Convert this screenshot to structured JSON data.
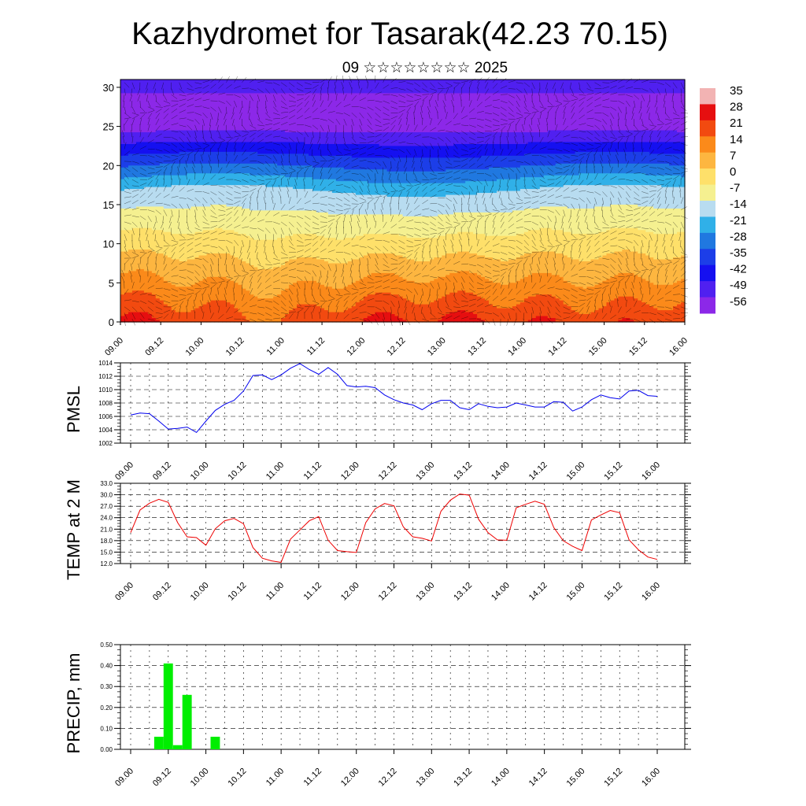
{
  "header": {
    "title": "Kazhydromet for Tasarak(42.23 70.15)",
    "subtitle": "09 ☆☆☆☆☆☆☆☆ 2025"
  },
  "x_ticks": [
    "09.00",
    "09.12",
    "10.00",
    "10.12",
    "11.00",
    "11.12",
    "12.00",
    "12.12",
    "13.00",
    "13.12",
    "14.00",
    "14.12",
    "15.00",
    "15.12",
    "16.00"
  ],
  "chart_data": [
    {
      "type": "heatmap",
      "name": "cross-section",
      "x_ticks": [
        "09.00",
        "09.12",
        "10.00",
        "10.12",
        "11.00",
        "11.12",
        "12.00",
        "12.12",
        "13.00",
        "13.12",
        "14.00",
        "14.12",
        "15.00",
        "15.12",
        "16.00"
      ],
      "y_ticks": [
        0,
        5,
        10,
        15,
        20,
        25,
        30
      ],
      "ylim": [
        0,
        31
      ],
      "colorbar_labels": [
        "35",
        "28",
        "21",
        "14",
        "7",
        "0",
        "-7",
        "-14",
        "-21",
        "-28",
        "-35",
        "-42",
        "-49",
        "-56"
      ],
      "colorbar_colors": [
        "#f2b3b3",
        "#e60f10",
        "#f24a10",
        "#fb8a1a",
        "#fdb640",
        "#fee06a",
        "#f5f090",
        "#b8dcf0",
        "#30b0e8",
        "#2078e0",
        "#1c3ee8",
        "#1510f0",
        "#5020f0",
        "#8c28e8"
      ],
      "surface_temp_by_day": [
        26,
        22,
        18,
        25,
        26,
        24,
        22,
        24
      ],
      "tropopause_level": 16.5,
      "cold_core_level": 25.5
    },
    {
      "type": "line",
      "ylabel": "PMSL",
      "ylim": [
        1002,
        1014
      ],
      "y_ticks": [
        "1014",
        "1012",
        "1010",
        "1008",
        "1006",
        "1004",
        "1002"
      ],
      "color": "#0000ee",
      "x_start": 0,
      "x_step": 3,
      "values": [
        1006.2,
        1006.5,
        1006.4,
        1005.3,
        1004.1,
        1004.2,
        1004.4,
        1003.6,
        1005.3,
        1006.9,
        1007.8,
        1008.4,
        1009.8,
        1012.1,
        1012.2,
        1011.5,
        1012.2,
        1013.2,
        1013.9,
        1013.0,
        1012.3,
        1013.3,
        1012.3,
        1010.6,
        1010.4,
        1010.5,
        1010.3,
        1009.2,
        1008.5,
        1008.0,
        1007.7,
        1007.0,
        1007.9,
        1008.4,
        1008.4,
        1007.3,
        1007.0,
        1007.9,
        1007.5,
        1007.3,
        1007.4,
        1008.0,
        1007.7,
        1007.4,
        1007.4,
        1008.2,
        1008.1,
        1006.8,
        1007.4,
        1008.5,
        1009.2,
        1008.8,
        1008.6,
        1009.8,
        1009.9,
        1009.1,
        1009.0
      ]
    },
    {
      "type": "line",
      "ylabel": "TEMP at 2 M",
      "ylim": [
        12,
        33
      ],
      "y_ticks": [
        "33.0",
        "30.0",
        "27.0",
        "24.0",
        "21.0",
        "18.0",
        "15.0",
        "12.0"
      ],
      "color": "#ee0000",
      "x_start": 0,
      "x_step": 3,
      "values": [
        20.1,
        26.0,
        27.8,
        28.8,
        28.0,
        22.7,
        19.0,
        18.8,
        16.8,
        21.1,
        23.2,
        23.8,
        22.4,
        16.2,
        13.4,
        12.7,
        12.3,
        18.4,
        20.8,
        23.2,
        24.3,
        18.1,
        15.4,
        15.1,
        14.9,
        22.7,
        26.3,
        27.7,
        27.1,
        21.6,
        19.0,
        18.6,
        17.9,
        25.7,
        28.6,
        30.2,
        29.9,
        23.6,
        20.1,
        18.2,
        18.1,
        26.6,
        27.5,
        28.3,
        27.5,
        21.4,
        18.0,
        16.5,
        15.4,
        23.4,
        24.7,
        25.9,
        25.3,
        18.2,
        15.6,
        13.7,
        13.1
      ]
    },
    {
      "type": "bar",
      "ylabel": "PRECIP, mm",
      "ylim": [
        0,
        0.5
      ],
      "y_ticks": [
        "0.50",
        "0.40",
        "0.30",
        "0.20",
        "0.10",
        "0.00"
      ],
      "color": "#00ee00",
      "x_step": 3,
      "bars": [
        {
          "x": 9,
          "value": 0.06
        },
        {
          "x": 12,
          "value": 0.41
        },
        {
          "x": 15,
          "value": 0.02
        },
        {
          "x": 18,
          "value": 0.26
        },
        {
          "x": 27,
          "value": 0.06
        }
      ]
    }
  ]
}
